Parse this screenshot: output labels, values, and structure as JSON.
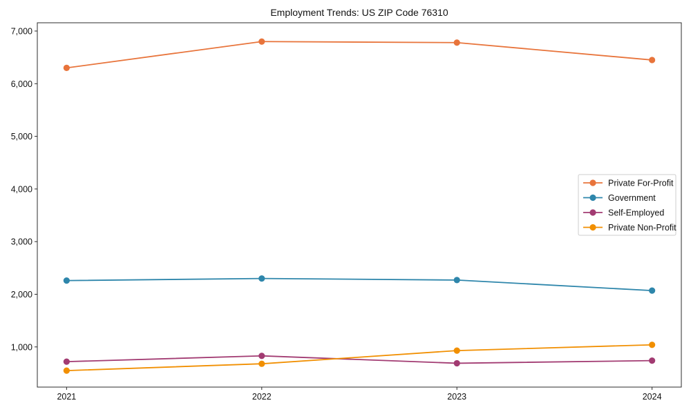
{
  "title": "Employment Trends: US ZIP Code 76310",
  "chart_data": {
    "type": "line",
    "title": "Employment Trends: US ZIP Code 76310",
    "xlabel": "",
    "ylabel": "",
    "x": [
      2021,
      2022,
      2023,
      2024
    ],
    "x_tick_labels": [
      "2021",
      "2022",
      "2023",
      "2024"
    ],
    "y_ticks": [
      1000,
      2000,
      3000,
      4000,
      5000,
      6000,
      7000
    ],
    "y_tick_labels": [
      "1,000",
      "2,000",
      "3,000",
      "4,000",
      "5,000",
      "6,000",
      "7,000"
    ],
    "xlim": [
      2020.85,
      2024.15
    ],
    "ylim": [
      237,
      7157
    ],
    "grid": false,
    "marker": "circle",
    "legend_position": "center-right",
    "series": [
      {
        "name": "Private For-Profit",
        "color": "#E8743B",
        "values": [
          6300,
          6800,
          6780,
          6450
        ]
      },
      {
        "name": "Government",
        "color": "#2E86AB",
        "values": [
          2260,
          2300,
          2270,
          2070
        ]
      },
      {
        "name": "Self-Employed",
        "color": "#A23B72",
        "values": [
          720,
          830,
          690,
          740
        ]
      },
      {
        "name": "Private Non-Profit",
        "color": "#F18F01",
        "values": [
          550,
          680,
          930,
          1040
        ]
      }
    ]
  }
}
